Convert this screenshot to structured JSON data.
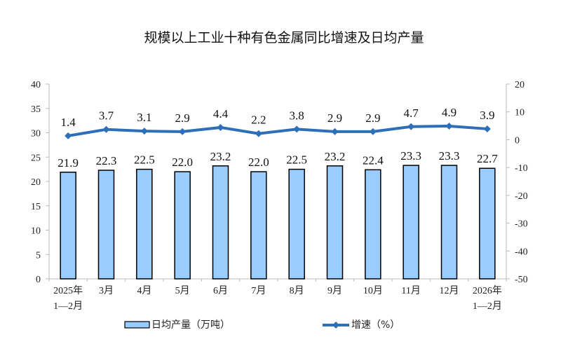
{
  "chart_data": {
    "type": "bar+line",
    "title": "规模以上工业十种有色金属同比增速及日均产量",
    "categories": [
      [
        "2025年",
        "1—2月"
      ],
      [
        "3月"
      ],
      [
        "4月"
      ],
      [
        "5月"
      ],
      [
        "6月"
      ],
      [
        "7月"
      ],
      [
        "8月"
      ],
      [
        "9月"
      ],
      [
        "10月"
      ],
      [
        "11月"
      ],
      [
        "12月"
      ],
      [
        "2026年",
        "1—2月"
      ]
    ],
    "series": [
      {
        "name": "日均产量（万吨）",
        "type": "bar",
        "axis": "left",
        "color": "#99CCFF",
        "values": [
          21.9,
          22.3,
          22.5,
          22.0,
          23.2,
          22.0,
          22.5,
          23.2,
          22.4,
          23.3,
          23.3,
          22.7
        ]
      },
      {
        "name": "增速（%）",
        "type": "line",
        "axis": "right",
        "color": "#2E6FB7",
        "values": [
          1.4,
          3.7,
          3.1,
          2.9,
          4.4,
          2.2,
          3.8,
          2.9,
          2.9,
          4.7,
          4.9,
          3.9
        ]
      }
    ],
    "left_axis": {
      "ylim": [
        0,
        40
      ],
      "ticks": [
        0,
        5,
        10,
        15,
        20,
        25,
        30,
        35,
        40
      ]
    },
    "right_axis": {
      "ylim": [
        -50,
        20
      ],
      "ticks": [
        -50,
        -40,
        -30,
        -20,
        -10,
        0,
        10,
        20
      ]
    },
    "legend_placement": "bottom",
    "grid": false
  }
}
